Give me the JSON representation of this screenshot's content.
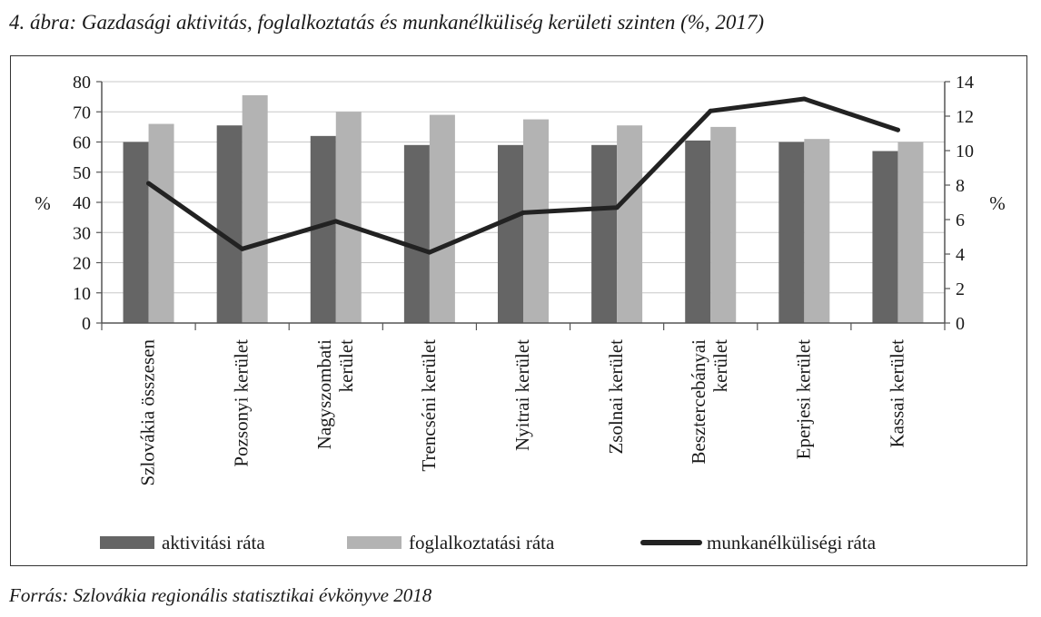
{
  "figure": {
    "title": "4. ábra: Gazdasági aktivitás, foglalkoztatás és munkanélküliség kerületi szinten (%, 2017)",
    "source": "Forrás: Szlovákia regionális statisztikai évkönyve 2018"
  },
  "colors": {
    "aktivitasi": "#656565",
    "foglalkoztatasi": "#b3b3b3",
    "munkanelkulisegi": "#222222"
  },
  "chart_data": {
    "type": "bar",
    "categories": [
      [
        "Szlovákia összesen"
      ],
      [
        "Pozsonyi kerület"
      ],
      [
        "Nagyszombati",
        "kerület"
      ],
      [
        "Trencséni kerület"
      ],
      [
        "Nyitrai kerület"
      ],
      [
        "Zsolnai kerület"
      ],
      [
        "Besztercebányai",
        "kerület"
      ],
      [
        "Eperjesi kerület"
      ],
      [
        "Kassai kerület"
      ]
    ],
    "series": [
      {
        "name": "aktivitási ráta",
        "type": "bar",
        "axis": "left",
        "values": [
          60,
          65.5,
          62,
          59,
          59,
          59,
          60.5,
          60,
          57
        ]
      },
      {
        "name": "foglalkoztatási ráta",
        "type": "bar",
        "axis": "left",
        "values": [
          66,
          75.5,
          70,
          69,
          67.5,
          65.5,
          65,
          61,
          60
        ]
      },
      {
        "name": "munkanélküliségi ráta",
        "type": "line",
        "axis": "right",
        "values": [
          8.1,
          4.3,
          5.9,
          4.1,
          6.4,
          6.7,
          12.3,
          13.0,
          11.2
        ]
      }
    ],
    "ylabel": "%",
    "y2label": "%",
    "ylim": [
      0,
      80
    ],
    "yticks": [
      0,
      10,
      20,
      30,
      40,
      50,
      60,
      70,
      80
    ],
    "y2lim": [
      0,
      14
    ],
    "y2ticks": [
      0,
      2,
      4,
      6,
      8,
      10,
      12,
      14
    ],
    "grid": true,
    "legend": "bottom"
  }
}
